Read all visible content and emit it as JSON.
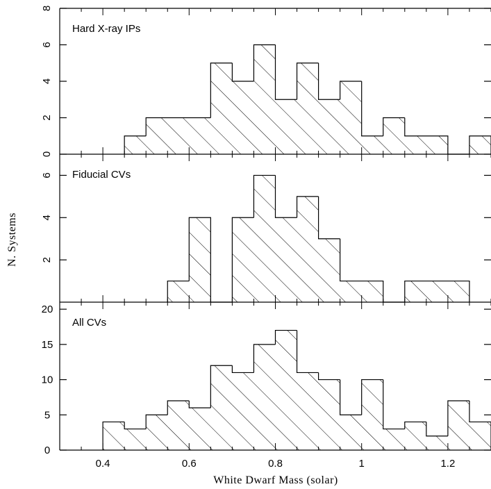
{
  "chart_data": {
    "type": "bar",
    "layout": "stacked-histogram-panels",
    "xlabel": "White Dwarf Mass (solar)",
    "ylabel": "N. Systems",
    "xlim": [
      0.3,
      1.3
    ],
    "bin_width": 0.05,
    "x_ticks": [
      "0.4",
      "0.6",
      "0.8",
      "1",
      "1.2"
    ],
    "fill": "diagonal hatch",
    "panels": [
      {
        "label": "Hard X-ray IPs",
        "ylim": [
          0,
          8
        ],
        "y_ticks": [
          "0",
          "2",
          "4",
          "6",
          "8"
        ],
        "bin_starts": [
          0.45,
          0.5,
          0.55,
          0.6,
          0.65,
          0.7,
          0.75,
          0.8,
          0.85,
          0.9,
          0.95,
          1.0,
          1.05,
          1.1,
          1.15,
          1.2,
          1.25
        ],
        "values": [
          1,
          2,
          2,
          2,
          5,
          4,
          6,
          3,
          5,
          3,
          4,
          1,
          2,
          1,
          1,
          0,
          1
        ]
      },
      {
        "label": "Fiducial CVs",
        "ylim": [
          0,
          7
        ],
        "y_ticks": [
          "2",
          "4",
          "6"
        ],
        "bin_starts": [
          0.55,
          0.6,
          0.65,
          0.7,
          0.75,
          0.8,
          0.85,
          0.9,
          0.95,
          1.0,
          1.05,
          1.1,
          1.15,
          1.2
        ],
        "values": [
          1,
          4,
          0,
          4,
          6,
          4,
          5,
          3,
          1,
          1,
          0,
          1,
          1,
          1
        ]
      },
      {
        "label": "All CVs",
        "ylim": [
          0,
          21
        ],
        "y_ticks": [
          "0",
          "5",
          "10",
          "15",
          "20"
        ],
        "bin_starts": [
          0.4,
          0.45,
          0.5,
          0.55,
          0.6,
          0.65,
          0.7,
          0.75,
          0.8,
          0.85,
          0.9,
          0.95,
          1.0,
          1.05,
          1.1,
          1.15,
          1.2,
          1.25
        ],
        "values": [
          4,
          3,
          5,
          7,
          6,
          12,
          11,
          15,
          17,
          11,
          10,
          5,
          10,
          3,
          4,
          2,
          7,
          4
        ]
      }
    ]
  }
}
